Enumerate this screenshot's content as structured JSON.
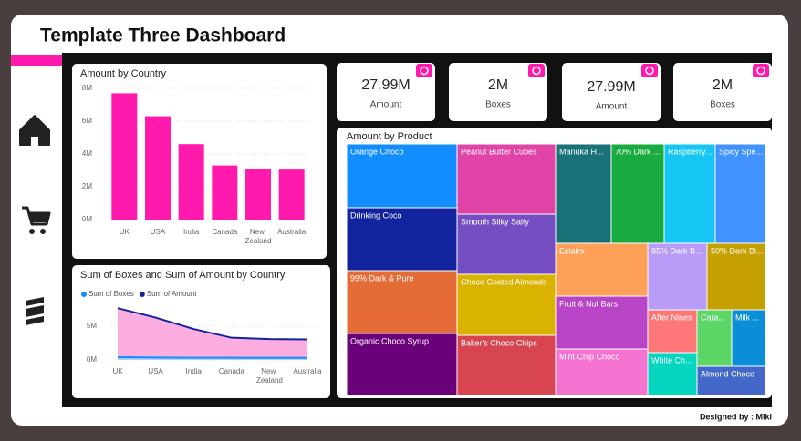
{
  "header": {
    "title": "Template Three Dashboard"
  },
  "footer": {
    "text": "Designed by : Miki"
  },
  "cards": [
    {
      "value": "27.99M",
      "label": "Amount"
    },
    {
      "value": "2M",
      "label": "Boxes"
    },
    {
      "value": "27.99M",
      "label": "Amount"
    },
    {
      "value": "2M",
      "label": "Boxes"
    }
  ],
  "chart_data": [
    {
      "type": "bar",
      "title": "Amount by Country",
      "categories": [
        "UK",
        "USA",
        "India",
        "Canada",
        "New Zealand",
        "Australia"
      ],
      "values": [
        7.7,
        6.3,
        4.6,
        3.3,
        3.1,
        3.05
      ],
      "color": "#ff1aad",
      "ylim": [
        0,
        8
      ],
      "yticks": [
        {
          "value": 0,
          "label": "0M"
        },
        {
          "value": 2,
          "label": "2M"
        },
        {
          "value": 4,
          "label": "4M"
        },
        {
          "value": 6,
          "label": "6M"
        },
        {
          "value": 8,
          "label": "8M"
        }
      ],
      "grid": true
    },
    {
      "type": "area",
      "title": "Sum of Boxes and Sum of Amount by Country",
      "categories": [
        "UK",
        "USA",
        "India",
        "Canada",
        "New Zealand",
        "Australia"
      ],
      "series": [
        {
          "name": "Sum of Boxes",
          "color": "#118dff",
          "values": [
            0.4,
            0.35,
            0.33,
            0.32,
            0.3,
            0.3
          ]
        },
        {
          "name": "Sum of Amount",
          "color": "#12239e",
          "values": [
            7.7,
            6.3,
            4.6,
            3.3,
            3.1,
            3.05
          ]
        }
      ],
      "ylim": [
        0,
        8
      ],
      "yticks": [
        {
          "value": 0,
          "label": "0M"
        },
        {
          "value": 5,
          "label": "5M"
        }
      ],
      "legend": "top-left",
      "grid": true
    },
    {
      "type": "treemap",
      "title": "Amount by Product",
      "items": [
        {
          "name": "Orange Choco",
          "color": "#118dff"
        },
        {
          "name": "Drinking Coco",
          "color": "#12239e"
        },
        {
          "name": "99% Dark & Pure",
          "color": "#e66c37"
        },
        {
          "name": "Organic Choco Syrup",
          "color": "#6b007b"
        },
        {
          "name": "Peanut Butter Cubes",
          "color": "#e044a7"
        },
        {
          "name": "Smooth Silky Salty",
          "color": "#744ec2"
        },
        {
          "name": "Choco Coated Almonds",
          "color": "#d9b300"
        },
        {
          "name": "Baker's Choco Chips",
          "color": "#d64550"
        },
        {
          "name": "Manuka H...",
          "color": "#197278"
        },
        {
          "name": "70% Dark ...",
          "color": "#1aab40"
        },
        {
          "name": "Raspberry...",
          "color": "#15c6f4"
        },
        {
          "name": "Spicy Spe...",
          "color": "#4092ff"
        },
        {
          "name": "Eclairs",
          "color": "#ffa058"
        },
        {
          "name": "Fruit & Nut Bars",
          "color": "#b845c5"
        },
        {
          "name": "Mint Chip Choco",
          "color": "#f472d0"
        },
        {
          "name": "85% Dark B...",
          "color": "#b99cf7"
        },
        {
          "name": "50% Dark Bi...",
          "color": "#c4a000"
        },
        {
          "name": "After Nines",
          "color": "#fc7775"
        },
        {
          "name": "Cara...",
          "color": "#5bd667"
        },
        {
          "name": "Milk ...",
          "color": "#0a8ed8"
        },
        {
          "name": "White Ch...",
          "color": "#05d6c0"
        },
        {
          "name": "Almond Choco",
          "color": "#4468c9"
        }
      ]
    }
  ]
}
